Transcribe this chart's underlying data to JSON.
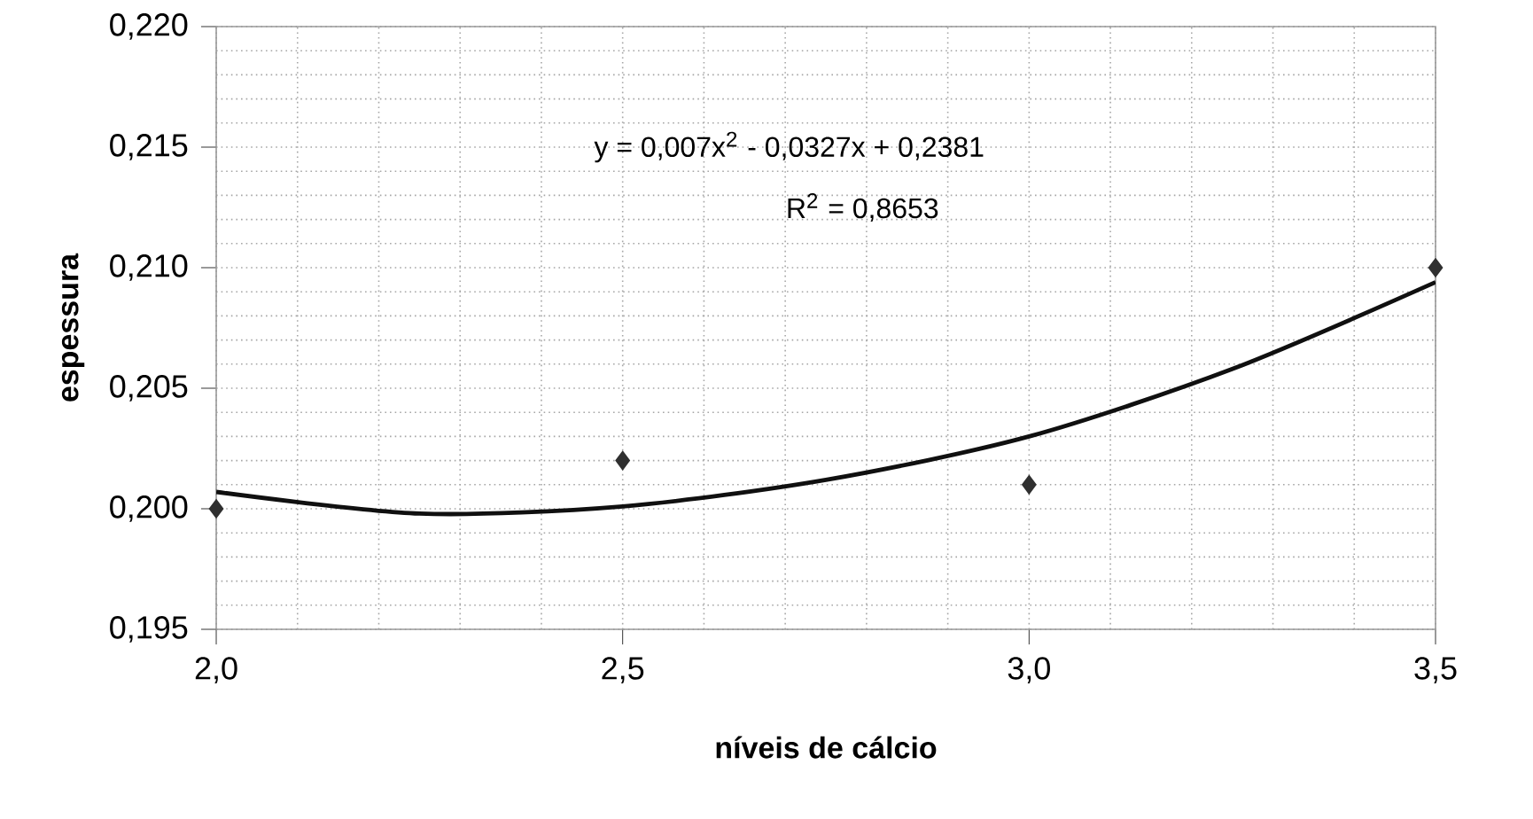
{
  "chart_data": {
    "type": "scatter",
    "xlabel": "níveis de cálcio",
    "ylabel": "espessura",
    "xlim": [
      2.0,
      3.5
    ],
    "ylim": [
      0.195,
      0.22
    ],
    "xticks": [
      {
        "value": 2.0,
        "label": "2,0"
      },
      {
        "value": 2.5,
        "label": "2,5"
      },
      {
        "value": 3.0,
        "label": "3,0"
      },
      {
        "value": 3.5,
        "label": "3,5"
      }
    ],
    "yticks": [
      {
        "value": 0.195,
        "label": "0,195"
      },
      {
        "value": 0.2,
        "label": "0,200"
      },
      {
        "value": 0.205,
        "label": "0,205"
      },
      {
        "value": 0.21,
        "label": "0,210"
      },
      {
        "value": 0.215,
        "label": "0,215"
      },
      {
        "value": 0.22,
        "label": "0,220"
      }
    ],
    "grid": true,
    "legend": false,
    "annotations": [
      "y = 0,007x$^{2}$ - 0,0327x + 0,2381",
      "R$^{2}$ = 0,8653"
    ],
    "series": [
      {
        "type": "scatter",
        "color": "#303030",
        "marker": "diamond",
        "x": [
          2.0,
          2.5,
          3.0,
          3.5
        ],
        "values": [
          0.2,
          0.202,
          0.201,
          0.21
        ]
      },
      {
        "type": "line",
        "color": "#101010",
        "marker": "none",
        "line_style": "solid",
        "x": [
          2.0,
          2.25,
          2.5,
          2.75,
          3.0,
          3.25,
          3.5
        ],
        "values": [
          0.2007,
          0.1998,
          0.2001,
          0.2012,
          0.203,
          0.2058,
          0.2094
        ]
      }
    ]
  }
}
